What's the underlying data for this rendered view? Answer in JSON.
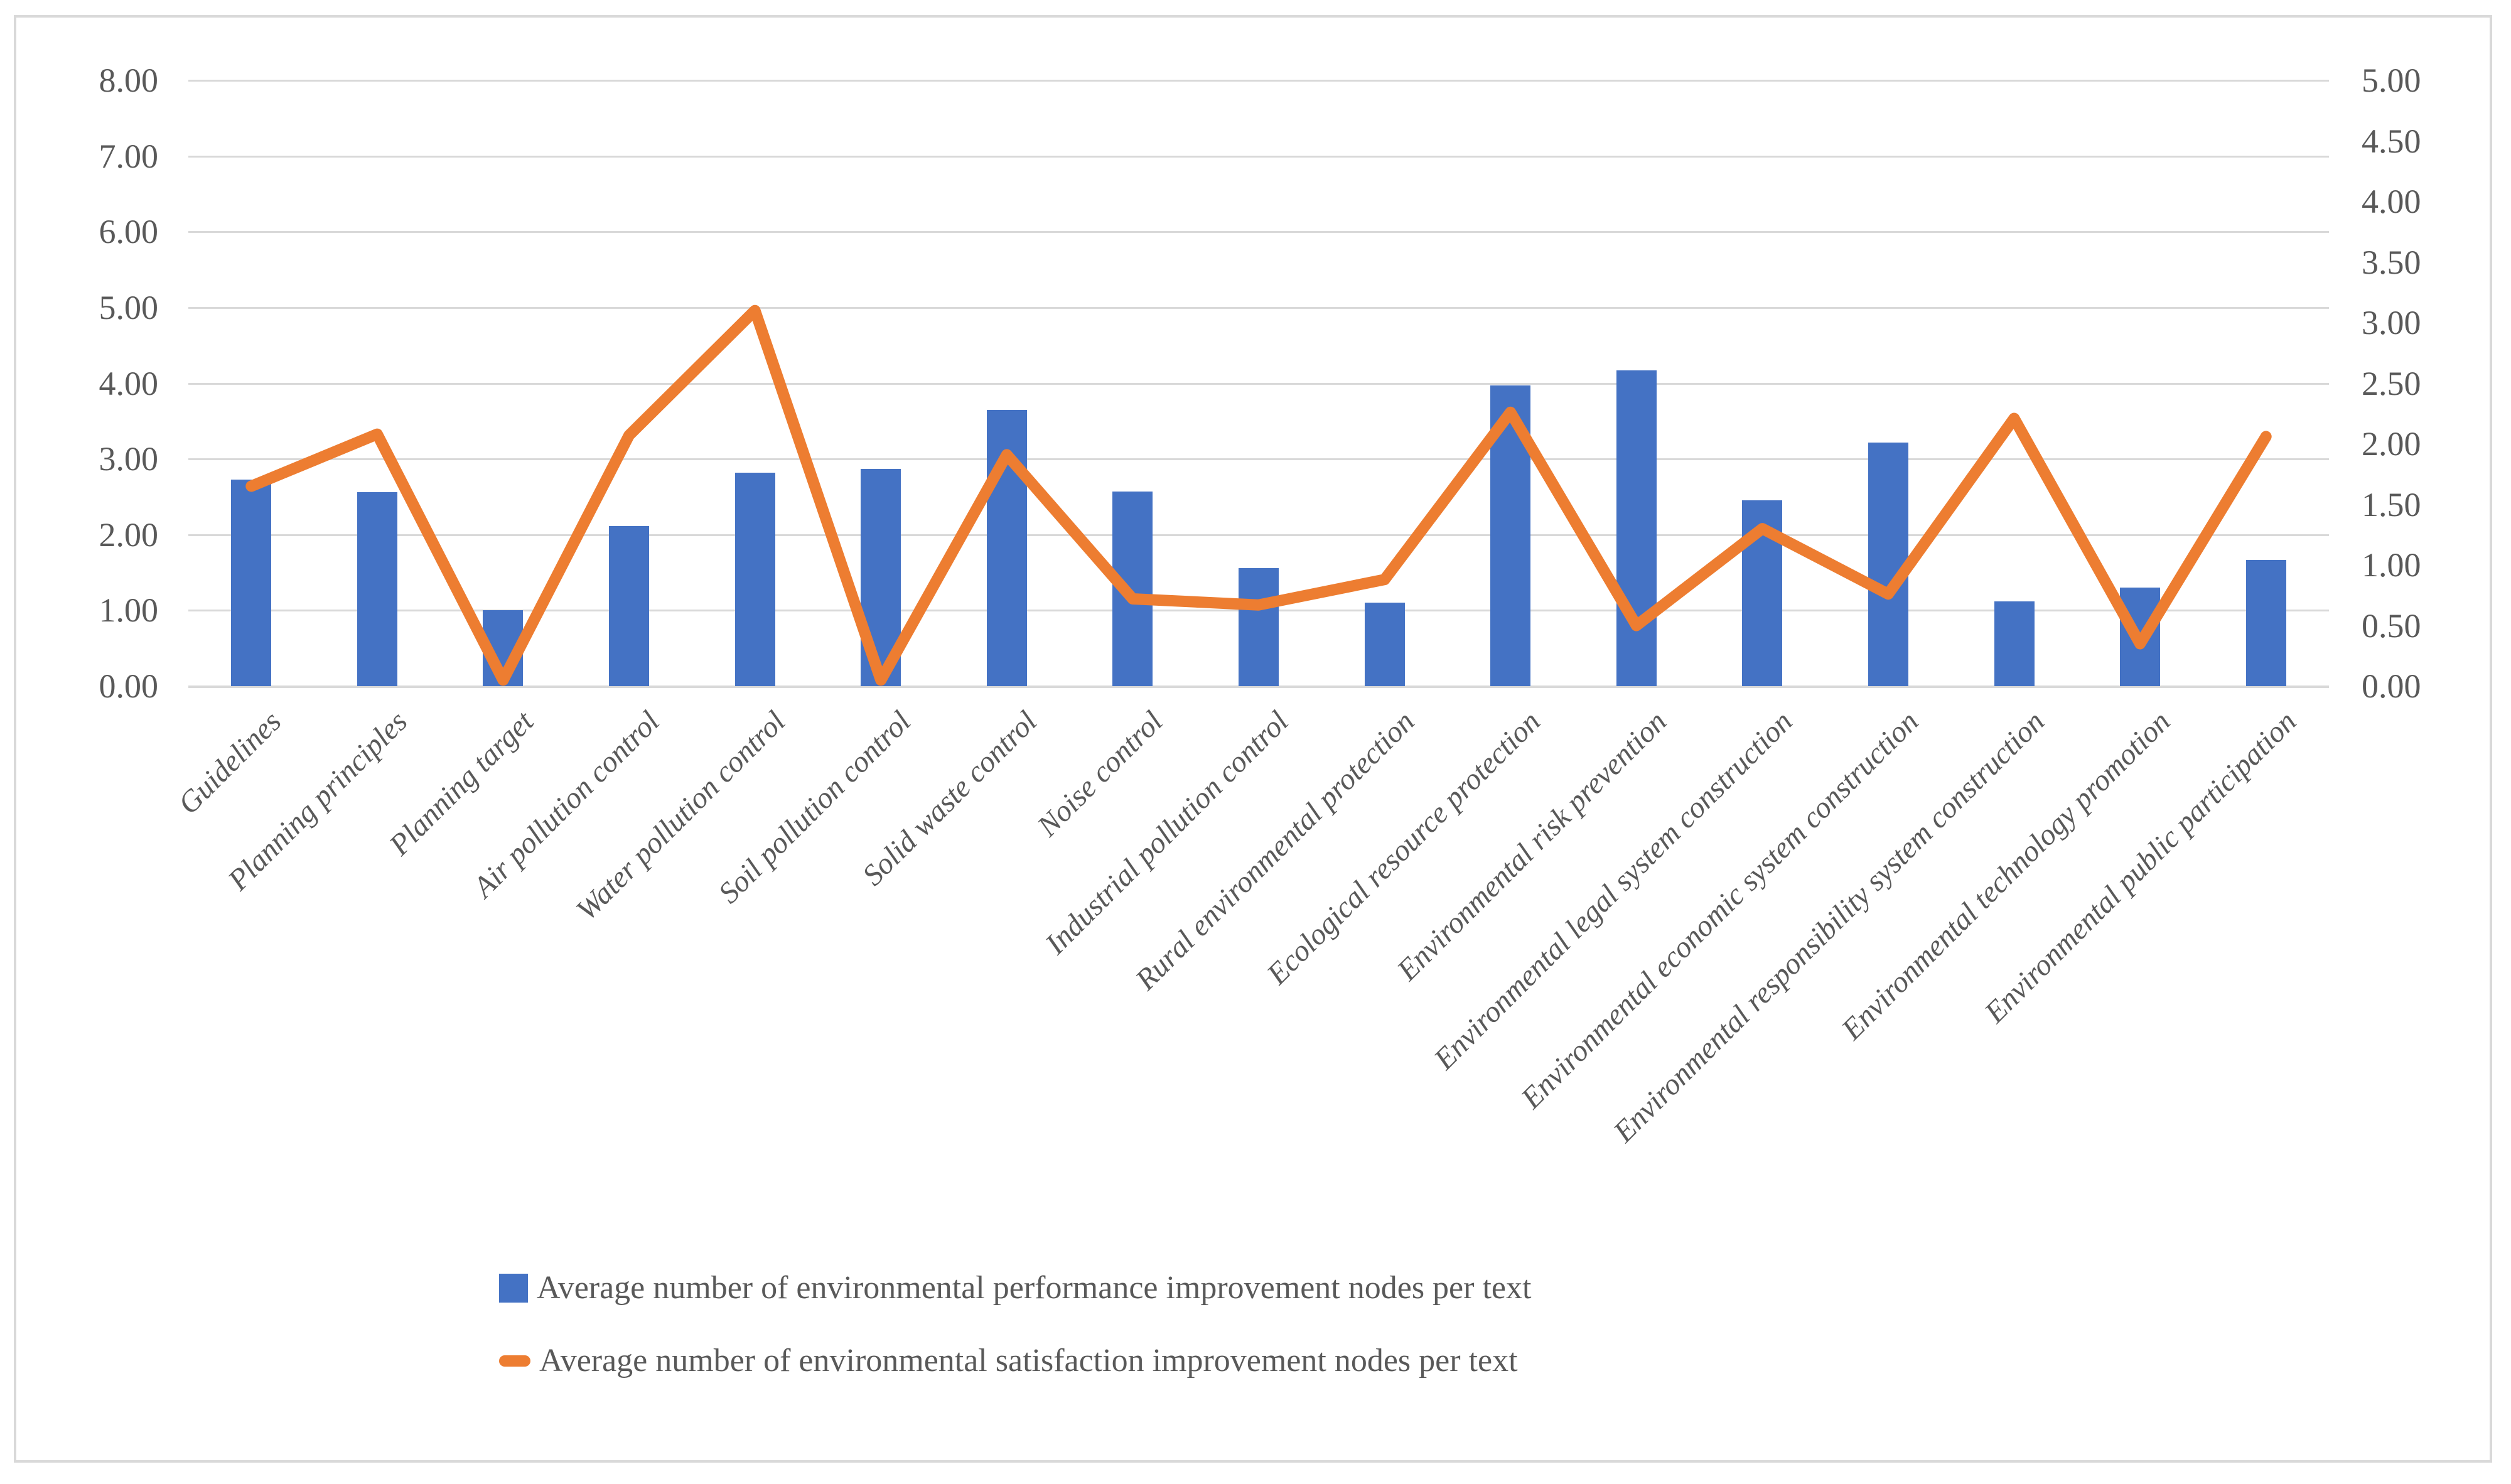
{
  "chart_data": {
    "type": "bar",
    "subtype": "dual-axis bar+line combo",
    "title": "",
    "xlabel": "",
    "ylabel": "",
    "grid": true,
    "legend_position": "bottom",
    "categories": [
      "Guidelines",
      "Planning principles",
      "Planning target",
      "Air pollution control",
      "Water pollution control",
      "Soil pollution control",
      "Solid waste control",
      "Noise control",
      "Industrial pollution control",
      "Rural environmental protection",
      "Ecological resource protection",
      "Environmental risk prevention",
      "Environmental legal system construction",
      "Environmental economic system construction",
      "Environmental responsibility system construction",
      "Environmental technology promotion",
      "Environmental public participation"
    ],
    "series": [
      {
        "name": "Average number of environmental performance improvement nodes per text",
        "type": "bar",
        "axis": "left",
        "color": "#4472c4",
        "values": [
          2.73,
          2.56,
          1.0,
          2.11,
          2.82,
          2.87,
          3.65,
          2.57,
          1.56,
          1.1,
          3.97,
          4.17,
          2.45,
          3.22,
          1.12,
          1.3,
          1.67
        ]
      },
      {
        "name": "Average number of environmental satisfaction improvement nodes per text",
        "type": "line",
        "axis": "right",
        "color": "#ed7d31",
        "values": [
          1.65,
          2.08,
          0.05,
          2.07,
          3.1,
          0.05,
          1.91,
          0.72,
          0.67,
          0.88,
          2.26,
          0.5,
          1.3,
          0.76,
          2.21,
          0.35,
          2.06
        ]
      }
    ],
    "left_axis": {
      "min": 0,
      "max": 8,
      "step": 1,
      "ticks": [
        "8.00",
        "7.00",
        "6.00",
        "5.00",
        "4.00",
        "3.00",
        "2.00",
        "1.00",
        "0.00"
      ]
    },
    "right_axis": {
      "min": 0,
      "max": 5,
      "step": 0.5,
      "ticks": [
        "5.00",
        "4.50",
        "4.00",
        "3.50",
        "3.00",
        "2.50",
        "2.00",
        "1.50",
        "1.00",
        "0.50",
        "0.00"
      ]
    }
  },
  "legend": {
    "bar_label": "Average number of environmental performance improvement nodes per text",
    "line_label": "Average number of environmental satisfaction improvement nodes per text"
  },
  "colors": {
    "bar": "#4472c4",
    "line": "#ed7d31",
    "gridline": "#d9d9d9",
    "text": "#595959",
    "frame_border": "#d9d9d9",
    "background": "#ffffff"
  }
}
